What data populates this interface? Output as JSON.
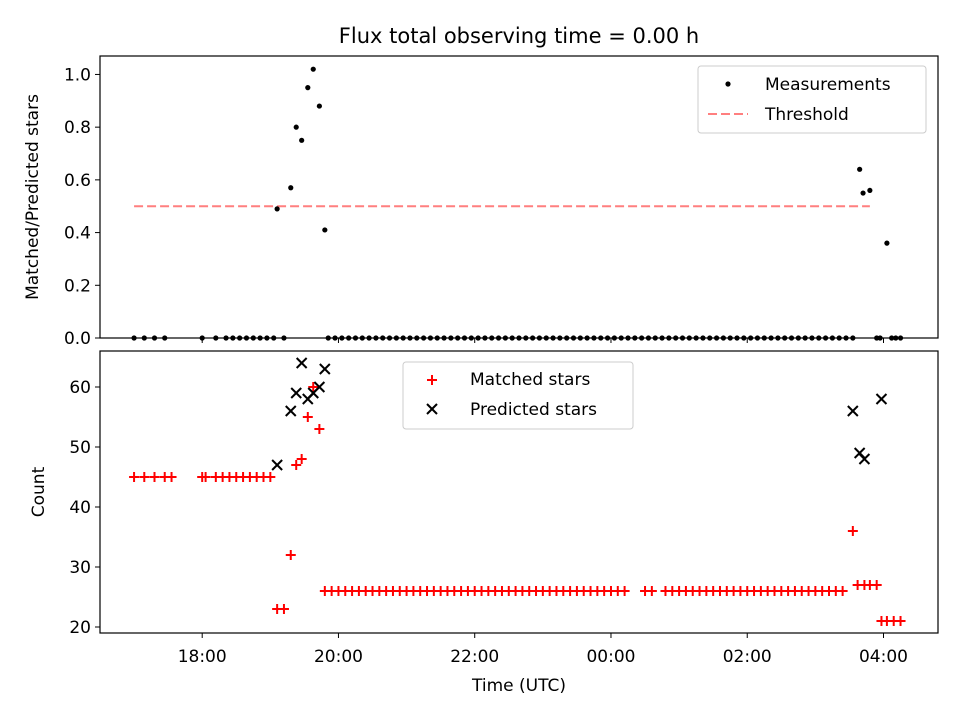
{
  "chart_data": [
    {
      "type": "scatter",
      "title": "Flux total observing time = 0.00 h",
      "xlabel": "",
      "ylabel": "Matched/Predicted stars",
      "xlim": [
        16.5,
        28.8
      ],
      "ylim": [
        0,
        1.07
      ],
      "yticks": [
        0.0,
        0.2,
        0.4,
        0.6,
        0.8,
        1.0
      ],
      "ytick_labels": [
        "0.0",
        "0.2",
        "0.4",
        "0.6",
        "0.8",
        "1.0"
      ],
      "xticks": [
        18,
        20,
        22,
        24,
        26,
        28
      ],
      "legend": {
        "position": "top-right",
        "entries": [
          "Measurements",
          "Threshold"
        ]
      },
      "threshold": {
        "name": "Threshold",
        "value": 0.5,
        "x_range": [
          17.0,
          27.8
        ],
        "color": "#ff7f7f"
      },
      "series": [
        {
          "name": "Measurements",
          "marker": "dot",
          "color": "#000000",
          "x": [
            17.0,
            17.15,
            17.3,
            17.45,
            18.0,
            18.2,
            18.35,
            18.45,
            18.55,
            18.65,
            18.75,
            18.85,
            18.95,
            19.05,
            19.1,
            19.2,
            19.3,
            19.38,
            19.46,
            19.55,
            19.63,
            19.72,
            19.8,
            19.85,
            19.95,
            20.05,
            20.15,
            20.25,
            20.35,
            20.45,
            20.55,
            20.65,
            20.75,
            20.85,
            20.95,
            21.05,
            21.15,
            21.25,
            21.35,
            21.45,
            21.55,
            21.65,
            21.75,
            21.85,
            21.95,
            22.05,
            22.15,
            22.25,
            22.35,
            22.45,
            22.55,
            22.65,
            22.75,
            22.85,
            22.95,
            23.05,
            23.15,
            23.25,
            23.35,
            23.45,
            23.55,
            23.65,
            23.75,
            23.85,
            23.95,
            24.05,
            24.15,
            24.25,
            24.35,
            24.45,
            24.55,
            24.65,
            24.75,
            24.85,
            24.95,
            25.05,
            25.15,
            25.25,
            25.35,
            25.45,
            25.55,
            25.65,
            25.75,
            25.85,
            25.95,
            26.05,
            26.15,
            26.25,
            26.35,
            26.45,
            26.55,
            26.65,
            26.75,
            26.85,
            26.95,
            27.05,
            27.15,
            27.25,
            27.35,
            27.45,
            27.55,
            27.65,
            27.7,
            27.8,
            27.9,
            27.95,
            28.05,
            28.12,
            28.18,
            28.25
          ],
          "y": [
            0.0,
            0.0,
            0.0,
            0.0,
            0.0,
            0.0,
            0.0,
            0.0,
            0.0,
            0.0,
            0.0,
            0.0,
            0.0,
            0.0,
            0.49,
            0.0,
            0.57,
            0.8,
            0.75,
            0.95,
            1.02,
            0.88,
            0.41,
            0.0,
            0.0,
            0.0,
            0.0,
            0.0,
            0.0,
            0.0,
            0.0,
            0.0,
            0.0,
            0.0,
            0.0,
            0.0,
            0.0,
            0.0,
            0.0,
            0.0,
            0.0,
            0.0,
            0.0,
            0.0,
            0.0,
            0.0,
            0.0,
            0.0,
            0.0,
            0.0,
            0.0,
            0.0,
            0.0,
            0.0,
            0.0,
            0.0,
            0.0,
            0.0,
            0.0,
            0.0,
            0.0,
            0.0,
            0.0,
            0.0,
            0.0,
            0.0,
            0.0,
            0.0,
            0.0,
            0.0,
            0.0,
            0.0,
            0.0,
            0.0,
            0.0,
            0.0,
            0.0,
            0.0,
            0.0,
            0.0,
            0.0,
            0.0,
            0.0,
            0.0,
            0.0,
            0.0,
            0.0,
            0.0,
            0.0,
            0.0,
            0.0,
            0.0,
            0.0,
            0.0,
            0.0,
            0.0,
            0.0,
            0.0,
            0.0,
            0.0,
            0.0,
            0.64,
            0.55,
            0.56,
            0.0,
            0.0,
            0.36,
            0.0,
            0.0,
            0.0
          ]
        }
      ]
    },
    {
      "type": "scatter",
      "title": "",
      "xlabel": "Time (UTC)",
      "ylabel": "Count",
      "xlim": [
        16.5,
        28.8
      ],
      "ylim": [
        19,
        66
      ],
      "yticks": [
        20,
        30,
        40,
        50,
        60
      ],
      "ytick_labels": [
        "20",
        "30",
        "40",
        "50",
        "60"
      ],
      "xticks": [
        18,
        20,
        22,
        24,
        26,
        28
      ],
      "xtick_labels": [
        "18:00",
        "20:00",
        "22:00",
        "00:00",
        "02:00",
        "04:00"
      ],
      "legend": {
        "position": "top-center",
        "entries": [
          "Matched stars",
          "Predicted stars"
        ]
      },
      "series": [
        {
          "name": "Matched stars",
          "marker": "plus",
          "color": "#ff0000",
          "x": [
            17.0,
            17.15,
            17.3,
            17.45,
            17.55,
            18.0,
            18.05,
            18.2,
            18.3,
            18.4,
            18.5,
            18.6,
            18.7,
            18.8,
            18.9,
            19.0,
            19.1,
            19.2,
            19.3,
            19.38,
            19.46,
            19.55,
            19.63,
            19.72,
            19.8,
            19.9,
            20.0,
            20.1,
            20.2,
            20.3,
            20.4,
            20.5,
            20.6,
            20.7,
            20.8,
            20.9,
            21.0,
            21.1,
            21.2,
            21.3,
            21.4,
            21.5,
            21.6,
            21.7,
            21.8,
            21.9,
            22.0,
            22.1,
            22.2,
            22.3,
            22.4,
            22.5,
            22.6,
            22.7,
            22.8,
            22.9,
            23.0,
            23.1,
            23.2,
            23.3,
            23.4,
            23.5,
            23.6,
            23.7,
            23.8,
            23.9,
            24.0,
            24.1,
            24.2,
            24.5,
            24.6,
            24.8,
            24.9,
            25.0,
            25.1,
            25.2,
            25.3,
            25.4,
            25.5,
            25.6,
            25.7,
            25.8,
            25.9,
            26.0,
            26.1,
            26.2,
            26.3,
            26.4,
            26.5,
            26.6,
            26.7,
            26.8,
            26.9,
            27.0,
            27.1,
            27.2,
            27.3,
            27.4,
            27.55,
            27.62,
            27.72,
            27.8,
            27.9,
            27.97,
            28.05,
            28.15,
            28.25
          ],
          "y": [
            45,
            45,
            45,
            45,
            45,
            45,
            45,
            45,
            45,
            45,
            45,
            45,
            45,
            45,
            45,
            45,
            23,
            23,
            32,
            47,
            48,
            55,
            60,
            53,
            26,
            26,
            26,
            26,
            26,
            26,
            26,
            26,
            26,
            26,
            26,
            26,
            26,
            26,
            26,
            26,
            26,
            26,
            26,
            26,
            26,
            26,
            26,
            26,
            26,
            26,
            26,
            26,
            26,
            26,
            26,
            26,
            26,
            26,
            26,
            26,
            26,
            26,
            26,
            26,
            26,
            26,
            26,
            26,
            26,
            26,
            26,
            26,
            26,
            26,
            26,
            26,
            26,
            26,
            26,
            26,
            26,
            26,
            26,
            26,
            26,
            26,
            26,
            26,
            26,
            26,
            26,
            26,
            26,
            26,
            26,
            26,
            26,
            26,
            36,
            27,
            27,
            27,
            27,
            21,
            21,
            21,
            21
          ]
        },
        {
          "name": "Predicted stars",
          "marker": "x",
          "color": "#000000",
          "x": [
            19.1,
            19.3,
            19.38,
            19.46,
            19.55,
            19.63,
            19.72,
            19.8,
            27.55,
            27.65,
            27.72,
            27.97
          ],
          "y": [
            47,
            56,
            59,
            64,
            58,
            59,
            60,
            63,
            56,
            49,
            48,
            58
          ]
        }
      ]
    }
  ]
}
